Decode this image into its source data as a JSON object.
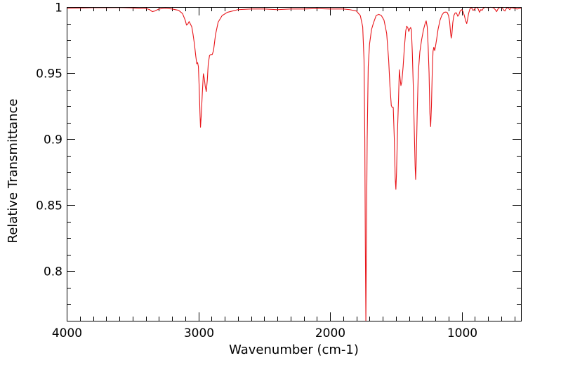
{
  "chart_data": {
    "type": "line",
    "title": "",
    "xlabel": "Wavenumber (cm-1)",
    "ylabel": "Relative Transmittance",
    "xlim": [
      4000,
      550
    ],
    "ylim": [
      0.7625,
      1.0
    ],
    "x_reversed": true,
    "grid": false,
    "x_ticks": [
      {
        "value": 4000,
        "label": "4000"
      },
      {
        "value": 3000,
        "label": "3000"
      },
      {
        "value": 2000,
        "label": "2000"
      },
      {
        "value": 1000,
        "label": "1000"
      }
    ],
    "y_ticks": [
      {
        "value": 1.0,
        "label": "1"
      },
      {
        "value": 0.95,
        "label": "0.95"
      },
      {
        "value": 0.9,
        "label": "0.9"
      },
      {
        "value": 0.85,
        "label": "0.85"
      },
      {
        "value": 0.8,
        "label": "0.8"
      }
    ],
    "series": [
      {
        "color": "#e8161b",
        "points": [
          [
            4000,
            0.999
          ],
          [
            3900,
            0.9992
          ],
          [
            3800,
            0.9995
          ],
          [
            3700,
            0.9995
          ],
          [
            3600,
            0.9996
          ],
          [
            3500,
            0.9993
          ],
          [
            3450,
            0.9988
          ],
          [
            3400,
            0.999
          ],
          [
            3370,
            0.998
          ],
          [
            3350,
            0.9965
          ],
          [
            3330,
            0.997
          ],
          [
            3300,
            0.9985
          ],
          [
            3250,
            0.999
          ],
          [
            3200,
            0.9985
          ],
          [
            3150,
            0.9975
          ],
          [
            3120,
            0.995
          ],
          [
            3100,
            0.99
          ],
          [
            3090,
            0.9863
          ],
          [
            3080,
            0.9872
          ],
          [
            3070,
            0.989
          ],
          [
            3050,
            0.985
          ],
          [
            3040,
            0.979
          ],
          [
            3030,
            0.972
          ],
          [
            3020,
            0.963
          ],
          [
            3012,
            0.957
          ],
          [
            3006,
            0.958
          ],
          [
            3000,
            0.955
          ],
          [
            2994,
            0.94
          ],
          [
            2988,
            0.92
          ],
          [
            2984,
            0.909
          ],
          [
            2978,
            0.918
          ],
          [
            2970,
            0.935
          ],
          [
            2962,
            0.9495
          ],
          [
            2955,
            0.946
          ],
          [
            2948,
            0.94
          ],
          [
            2940,
            0.936
          ],
          [
            2932,
            0.945
          ],
          [
            2925,
            0.957
          ],
          [
            2915,
            0.9635
          ],
          [
            2905,
            0.964
          ],
          [
            2895,
            0.964
          ],
          [
            2885,
            0.967
          ],
          [
            2870,
            0.979
          ],
          [
            2850,
            0.9885
          ],
          [
            2820,
            0.9935
          ],
          [
            2780,
            0.996
          ],
          [
            2700,
            0.998
          ],
          [
            2600,
            0.9985
          ],
          [
            2500,
            0.9985
          ],
          [
            2400,
            0.998
          ],
          [
            2300,
            0.9985
          ],
          [
            2200,
            0.9985
          ],
          [
            2100,
            0.9988
          ],
          [
            2000,
            0.9985
          ],
          [
            1900,
            0.9985
          ],
          [
            1850,
            0.998
          ],
          [
            1800,
            0.997
          ],
          [
            1770,
            0.9935
          ],
          [
            1752,
            0.985
          ],
          [
            1742,
            0.96
          ],
          [
            1736,
            0.9
          ],
          [
            1732,
            0.82
          ],
          [
            1728,
            0.7625
          ],
          [
            1724,
            0.82
          ],
          [
            1718,
            0.9
          ],
          [
            1710,
            0.955
          ],
          [
            1700,
            0.972
          ],
          [
            1685,
            0.983
          ],
          [
            1670,
            0.988
          ],
          [
            1650,
            0.9935
          ],
          [
            1630,
            0.9945
          ],
          [
            1610,
            0.9935
          ],
          [
            1590,
            0.99
          ],
          [
            1570,
            0.98
          ],
          [
            1555,
            0.96
          ],
          [
            1545,
            0.94
          ],
          [
            1535,
            0.9255
          ],
          [
            1528,
            0.924
          ],
          [
            1520,
            0.924
          ],
          [
            1512,
            0.9
          ],
          [
            1505,
            0.87
          ],
          [
            1500,
            0.862
          ],
          [
            1495,
            0.875
          ],
          [
            1488,
            0.905
          ],
          [
            1480,
            0.93
          ],
          [
            1474,
            0.9525
          ],
          [
            1468,
            0.946
          ],
          [
            1462,
            0.9405
          ],
          [
            1455,
            0.9435
          ],
          [
            1445,
            0.955
          ],
          [
            1435,
            0.97
          ],
          [
            1425,
            0.982
          ],
          [
            1418,
            0.9855
          ],
          [
            1410,
            0.9845
          ],
          [
            1402,
            0.9815
          ],
          [
            1395,
            0.9835
          ],
          [
            1388,
            0.9845
          ],
          [
            1382,
            0.9825
          ],
          [
            1375,
            0.965
          ],
          [
            1368,
            0.94
          ],
          [
            1360,
            0.905
          ],
          [
            1354,
            0.88
          ],
          [
            1350,
            0.8695
          ],
          [
            1345,
            0.885
          ],
          [
            1338,
            0.92
          ],
          [
            1330,
            0.95
          ],
          [
            1318,
            0.966
          ],
          [
            1305,
            0.975
          ],
          [
            1290,
            0.983
          ],
          [
            1278,
            0.9875
          ],
          [
            1270,
            0.9895
          ],
          [
            1262,
            0.985
          ],
          [
            1255,
            0.97
          ],
          [
            1248,
            0.95
          ],
          [
            1242,
            0.92
          ],
          [
            1236,
            0.9095
          ],
          [
            1230,
            0.925
          ],
          [
            1224,
            0.95
          ],
          [
            1218,
            0.9665
          ],
          [
            1212,
            0.9695
          ],
          [
            1205,
            0.967
          ],
          [
            1198,
            0.971
          ],
          [
            1190,
            0.976
          ],
          [
            1180,
            0.983
          ],
          [
            1165,
            0.99
          ],
          [
            1150,
            0.994
          ],
          [
            1135,
            0.996
          ],
          [
            1120,
            0.9962
          ],
          [
            1110,
            0.9958
          ],
          [
            1100,
            0.9935
          ],
          [
            1092,
            0.989
          ],
          [
            1085,
            0.981
          ],
          [
            1080,
            0.9765
          ],
          [
            1075,
            0.979
          ],
          [
            1068,
            0.988
          ],
          [
            1060,
            0.9935
          ],
          [
            1050,
            0.9955
          ],
          [
            1040,
            0.9955
          ],
          [
            1030,
            0.993
          ],
          [
            1022,
            0.994
          ],
          [
            1012,
            0.997
          ],
          [
            1000,
            0.998
          ],
          [
            990,
            0.9965
          ],
          [
            980,
            0.9935
          ],
          [
            970,
            0.9895
          ],
          [
            962,
            0.9875
          ],
          [
            955,
            0.991
          ],
          [
            948,
            0.995
          ],
          [
            938,
            0.9985
          ],
          [
            925,
            0.9995
          ],
          [
            915,
            0.9975
          ],
          [
            905,
            0.998
          ],
          [
            895,
            0.9995
          ],
          [
            885,
            0.9998
          ],
          [
            875,
            0.9985
          ],
          [
            865,
            0.996
          ],
          [
            855,
            0.998
          ],
          [
            845,
            0.9975
          ],
          [
            835,
            0.9992
          ],
          [
            820,
            0.9998
          ],
          [
            800,
            0.9995
          ],
          [
            780,
            0.9998
          ],
          [
            760,
            0.9995
          ],
          [
            745,
            0.998
          ],
          [
            735,
            0.9965
          ],
          [
            725,
            0.9985
          ],
          [
            715,
            0.9995
          ],
          [
            700,
            0.9998
          ],
          [
            690,
            0.999
          ],
          [
            680,
            0.9975
          ],
          [
            672,
            0.997
          ],
          [
            664,
            0.9985
          ],
          [
            655,
            0.9995
          ],
          [
            645,
            0.999
          ],
          [
            635,
            0.998
          ],
          [
            628,
            0.9992
          ],
          [
            620,
            0.9995
          ],
          [
            600,
            0.999
          ],
          [
            580,
            0.9985
          ],
          [
            560,
            0.9988
          ],
          [
            550,
            0.999
          ]
        ]
      }
    ]
  }
}
